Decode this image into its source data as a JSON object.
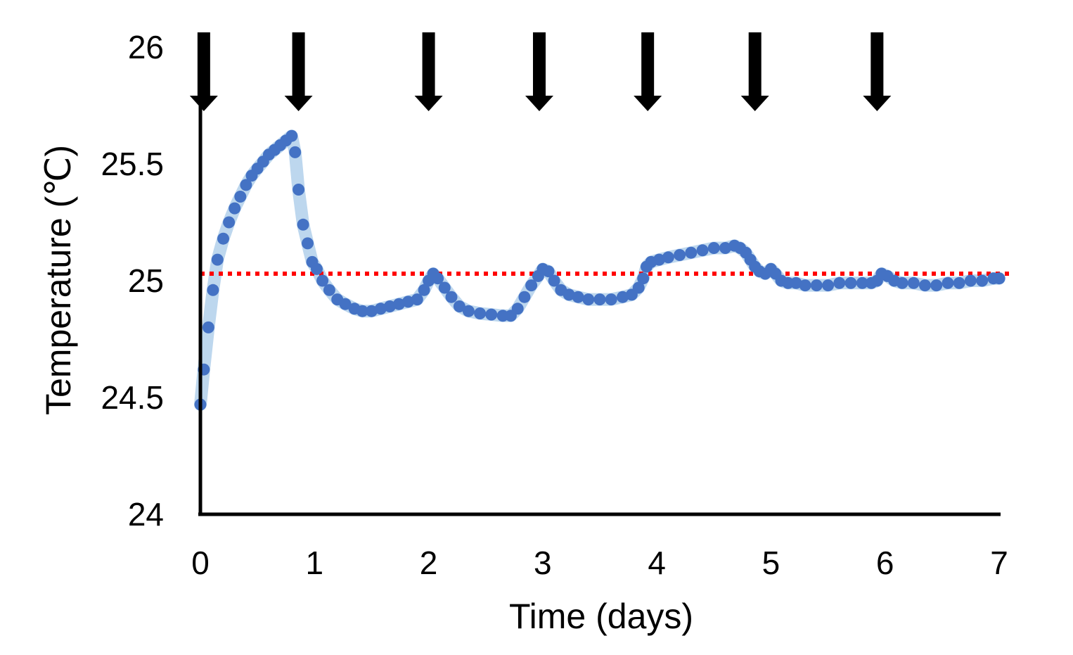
{
  "chart_data": {
    "type": "scatter",
    "title": "",
    "xlabel": "Time (days)",
    "ylabel": "Temperature (℃)",
    "xlim": [
      0,
      7
    ],
    "ylim": [
      24,
      26
    ],
    "x_ticks": [
      "0",
      "1",
      "2",
      "3",
      "4",
      "5",
      "6",
      "7"
    ],
    "y_ticks": [
      "24",
      "24.5",
      "25",
      "25.5",
      "26"
    ],
    "grid": false,
    "legend": "none",
    "reference_line": {
      "y": 25.03,
      "style": "dotted",
      "color": "#ff0000"
    },
    "event_arrows_x": [
      0.03,
      0.86,
      2.0,
      2.97,
      3.92,
      4.86,
      5.93
    ],
    "series": [
      {
        "color": "#4472c4",
        "band_color": "#bdd7ee",
        "points": [
          [
            0.0,
            24.47
          ],
          [
            0.03,
            24.62
          ],
          [
            0.07,
            24.8
          ],
          [
            0.11,
            24.96
          ],
          [
            0.15,
            25.09
          ],
          [
            0.2,
            25.18
          ],
          [
            0.25,
            25.25
          ],
          [
            0.3,
            25.31
          ],
          [
            0.35,
            25.36
          ],
          [
            0.4,
            25.41
          ],
          [
            0.45,
            25.45
          ],
          [
            0.5,
            25.48
          ],
          [
            0.55,
            25.51
          ],
          [
            0.6,
            25.54
          ],
          [
            0.65,
            25.56
          ],
          [
            0.7,
            25.58
          ],
          [
            0.75,
            25.6
          ],
          [
            0.8,
            25.62
          ],
          [
            0.83,
            25.55
          ],
          [
            0.86,
            25.39
          ],
          [
            0.9,
            25.24
          ],
          [
            0.94,
            25.16
          ],
          [
            0.98,
            25.08
          ],
          [
            1.02,
            25.05
          ],
          [
            1.07,
            25.0
          ],
          [
            1.13,
            24.96
          ],
          [
            1.2,
            24.92
          ],
          [
            1.27,
            24.9
          ],
          [
            1.35,
            24.88
          ],
          [
            1.42,
            24.87
          ],
          [
            1.5,
            24.87
          ],
          [
            1.58,
            24.88
          ],
          [
            1.66,
            24.89
          ],
          [
            1.74,
            24.9
          ],
          [
            1.82,
            24.91
          ],
          [
            1.9,
            24.92
          ],
          [
            1.96,
            24.96
          ],
          [
            2.0,
            25.0
          ],
          [
            2.04,
            25.03
          ],
          [
            2.08,
            25.01
          ],
          [
            2.14,
            24.97
          ],
          [
            2.2,
            24.93
          ],
          [
            2.27,
            24.89
          ],
          [
            2.35,
            24.87
          ],
          [
            2.45,
            24.86
          ],
          [
            2.55,
            24.855
          ],
          [
            2.65,
            24.85
          ],
          [
            2.72,
            24.85
          ],
          [
            2.78,
            24.88
          ],
          [
            2.84,
            24.93
          ],
          [
            2.9,
            24.98
          ],
          [
            2.96,
            25.02
          ],
          [
            3.0,
            25.05
          ],
          [
            3.05,
            25.04
          ],
          [
            3.1,
            25.0
          ],
          [
            3.16,
            24.96
          ],
          [
            3.23,
            24.94
          ],
          [
            3.31,
            24.93
          ],
          [
            3.4,
            24.92
          ],
          [
            3.5,
            24.92
          ],
          [
            3.6,
            24.92
          ],
          [
            3.7,
            24.93
          ],
          [
            3.78,
            24.94
          ],
          [
            3.84,
            24.97
          ],
          [
            3.88,
            25.01
          ],
          [
            3.91,
            25.06
          ],
          [
            3.95,
            25.08
          ],
          [
            4.02,
            25.09
          ],
          [
            4.1,
            25.1
          ],
          [
            4.2,
            25.11
          ],
          [
            4.3,
            25.12
          ],
          [
            4.4,
            25.13
          ],
          [
            4.5,
            25.14
          ],
          [
            4.6,
            25.14
          ],
          [
            4.68,
            25.15
          ],
          [
            4.73,
            25.14
          ],
          [
            4.78,
            25.12
          ],
          [
            4.82,
            25.09
          ],
          [
            4.86,
            25.06
          ],
          [
            4.9,
            25.04
          ],
          [
            4.95,
            25.03
          ],
          [
            5.0,
            25.05
          ],
          [
            5.04,
            25.03
          ],
          [
            5.09,
            25.0
          ],
          [
            5.15,
            24.99
          ],
          [
            5.22,
            24.99
          ],
          [
            5.3,
            24.98
          ],
          [
            5.4,
            24.98
          ],
          [
            5.5,
            24.98
          ],
          [
            5.6,
            24.99
          ],
          [
            5.7,
            24.99
          ],
          [
            5.8,
            24.99
          ],
          [
            5.88,
            24.99
          ],
          [
            5.93,
            25.0
          ],
          [
            5.97,
            25.03
          ],
          [
            6.02,
            25.02
          ],
          [
            6.08,
            25.0
          ],
          [
            6.15,
            24.99
          ],
          [
            6.25,
            24.99
          ],
          [
            6.35,
            24.98
          ],
          [
            6.45,
            24.98
          ],
          [
            6.55,
            24.99
          ],
          [
            6.65,
            24.99
          ],
          [
            6.75,
            25.0
          ],
          [
            6.85,
            25.0
          ],
          [
            6.95,
            25.01
          ],
          [
            7.0,
            25.01
          ]
        ]
      }
    ]
  }
}
